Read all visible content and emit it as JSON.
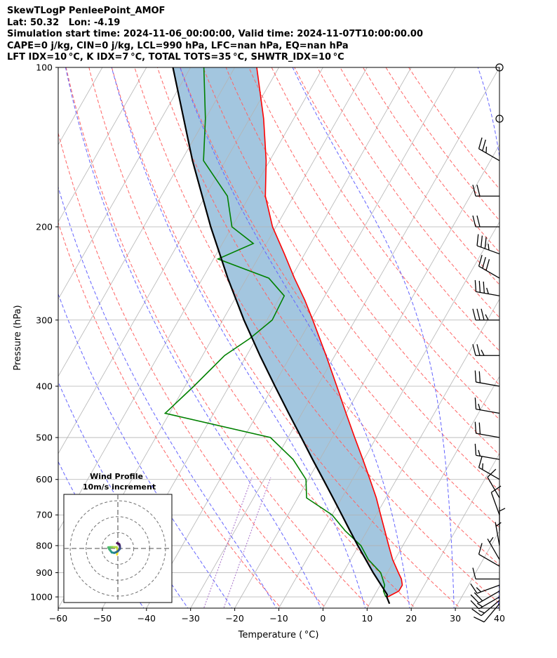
{
  "title_lines": [
    "SkewTLogP PenleePoint_AMOF",
    "Lat: 50.32   Lon: -4.19",
    "Simulation start time: 2024-11-06_00:00:00, Valid time: 2024-11-07T10:00:00.00",
    "CAPE=0 j/kg, CIN=0 j/kg, LCL=990 hPa, LFC=nan hPa, EQ=nan hPa",
    "LFT IDX=10 °C, K IDX=7 °C, TOTAL TOTS=35 °C, SHWTR_IDX=10 °C"
  ],
  "chart_data": {
    "type": "skewt",
    "xlabel": "Temperature ( °C)",
    "ylabel": "Pressure (hPa)",
    "xlim": [
      -60,
      40
    ],
    "ylim": [
      1050,
      100
    ],
    "x_ticks": [
      -60,
      -50,
      -40,
      -30,
      -20,
      -10,
      0,
      10,
      20,
      30,
      40
    ],
    "x_tick_labels": [
      "−60",
      "−50",
      "−40",
      "−30",
      "−20",
      "−10",
      "0",
      "10",
      "20",
      "30",
      "40"
    ],
    "y_ticks": [
      1000,
      900,
      800,
      700,
      600,
      500,
      400,
      300,
      200,
      100
    ],
    "y_tick_labels": [
      "1000",
      "900",
      "800",
      "700",
      "600",
      "500",
      "400",
      "300",
      "200",
      "100"
    ],
    "grid": true,
    "series": [
      {
        "name": "Temperature",
        "color": "#ff0000",
        "pressure": [
          1000,
          975,
          950,
          925,
          900,
          850,
          800,
          750,
          700,
          650,
          600,
          550,
          500,
          450,
          400,
          350,
          300,
          275,
          250,
          225,
          200,
          175,
          150,
          125,
          100
        ],
        "values": [
          13.2,
          15.0,
          15.0,
          14.0,
          12.5,
          9.5,
          6.8,
          4.0,
          1.0,
          -2.2,
          -6.0,
          -10.2,
          -14.9,
          -20.0,
          -25.6,
          -32.0,
          -39.6,
          -44.0,
          -49.2,
          -54.6,
          -60.8,
          -66.4,
          -70.8,
          -76.8,
          -85.0
        ]
      },
      {
        "name": "Dewpoint",
        "color": "#008000",
        "pressure": [
          1000,
          975,
          950,
          900,
          850,
          800,
          750,
          700,
          650,
          600,
          550,
          500,
          450,
          400,
          350,
          325,
          300,
          270,
          250,
          230,
          215,
          200,
          175,
          150,
          125,
          100
        ],
        "values": [
          12.8,
          11.5,
          11.0,
          8.5,
          4.0,
          0.5,
          -5.0,
          -10.0,
          -18.0,
          -20.5,
          -26.0,
          -34.0,
          -61.0,
          -58.0,
          -55.0,
          -51.5,
          -48.8,
          -49.2,
          -55.0,
          -69.0,
          -63.0,
          -70.0,
          -75.0,
          -85.0,
          -90.0,
          -97.0
        ]
      },
      {
        "name": "Parcel profile",
        "color": "#000000",
        "pressure": [
          1030,
          1000,
          990,
          950,
          900,
          850,
          800,
          750,
          700,
          650,
          600,
          550,
          500,
          450,
          400,
          350,
          300,
          250,
          200,
          150,
          100
        ],
        "values": [
          14.5,
          13.0,
          12.8,
          10.2,
          6.8,
          3.4,
          -0.2,
          -3.9,
          -7.8,
          -12.0,
          -16.6,
          -21.6,
          -27.0,
          -33.0,
          -39.6,
          -47.0,
          -55.2,
          -64.3,
          -74.8,
          -87.5,
          -104.0
        ]
      }
    ],
    "cape_cin_shading": {
      "color": "#a3c6df",
      "between": [
        "Temperature",
        "Parcel profile"
      ]
    },
    "reference_lines": {
      "dry_adiabats_color": "#ff6464",
      "moist_adiabats_color": "#6464ff",
      "mixing_ratio_color": "#a56ec8",
      "isotherm_color": "#b4b4b4",
      "dry_adiabats_K": [
        260,
        270,
        280,
        290,
        300,
        310,
        320,
        330,
        340,
        350,
        360,
        370,
        380,
        390,
        400,
        410,
        420,
        430
      ],
      "moist_adiabats_start_C": [
        -40,
        -30,
        -20,
        -10,
        0,
        10,
        20,
        30,
        40
      ],
      "mixing_ratio_gkg": [
        0.4,
        0.6
      ]
    },
    "wind_barbs": {
      "color": "#000000",
      "pressure": [
        1030,
        1015,
        1000,
        975,
        950,
        925,
        875,
        850,
        800,
        750,
        700,
        650,
        600,
        550,
        500,
        450,
        400,
        350,
        300,
        270,
        250,
        225,
        200,
        175,
        150,
        125,
        100
      ],
      "speed_kt": [
        10,
        15,
        15,
        20,
        15,
        10,
        10,
        5,
        5,
        5,
        10,
        10,
        15,
        15,
        20,
        15,
        20,
        25,
        35,
        35,
        30,
        35,
        20,
        20,
        25,
        0,
        0
      ],
      "direction_deg": [
        220,
        230,
        240,
        240,
        250,
        270,
        300,
        330,
        350,
        360,
        340,
        330,
        300,
        280,
        280,
        280,
        280,
        270,
        270,
        280,
        300,
        290,
        270,
        270,
        300,
        0,
        0
      ]
    },
    "hodograph": {
      "title": "Wind Profile",
      "subtitle": "10m/s increment",
      "ring_step_ms": 10,
      "rings": 3,
      "colormap": [
        "#440154",
        "#3b528b",
        "#21918c",
        "#5ec962",
        "#fde725"
      ],
      "u_ms": [
        -0.5,
        -0.2,
        -0.7,
        -3.6,
        -4.8,
        -6.0,
        -5.4,
        -4.5,
        -3.8,
        -2.3,
        -1.1,
        0.1,
        1.4,
        1.3,
        1.2,
        0.9,
        0.2,
        -0.5
      ],
      "v_ms": [
        -3.8,
        -1.1,
        0.8,
        0.9,
        0.8,
        0.7,
        -0.5,
        -1.6,
        -2.5,
        -2.8,
        -2.4,
        -1.6,
        -0.1,
        0.9,
        1.8,
        2.7,
        3.1,
        3.3
      ]
    }
  }
}
